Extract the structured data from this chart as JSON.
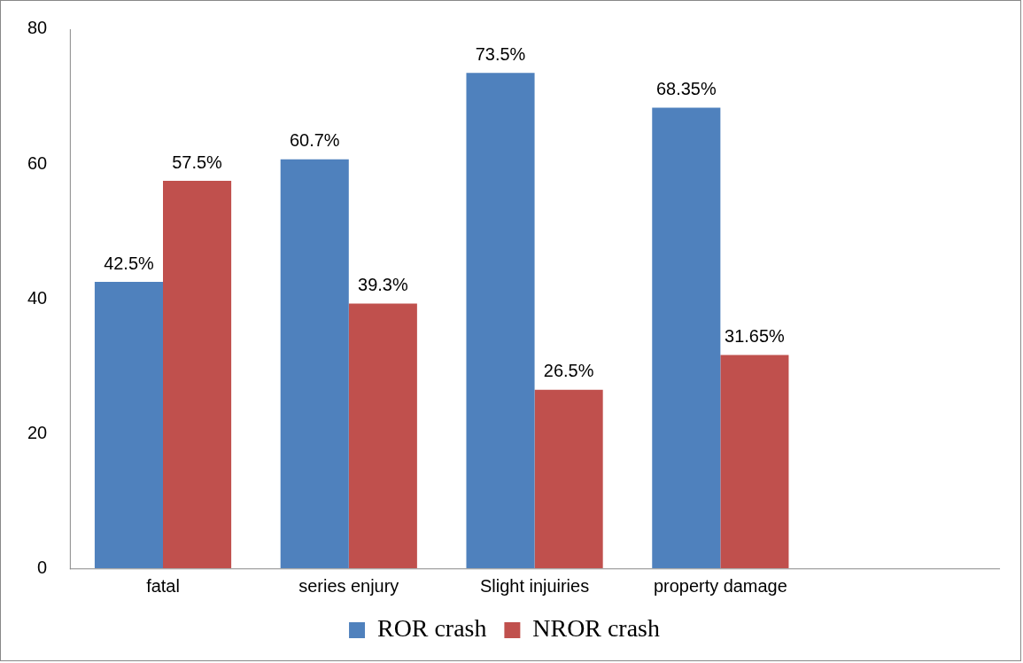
{
  "chart_data": {
    "type": "bar",
    "categories": [
      "fatal",
      "series enjury",
      "Slight injuiries",
      "property damage",
      null
    ],
    "series": [
      {
        "name": "ROR crash",
        "color": "#4f81bd",
        "values": [
          42.5,
          60.7,
          73.5,
          68.35,
          null
        ],
        "value_labels": [
          "42.5%",
          "60.7%",
          "73.5%",
          "68.35%",
          null
        ]
      },
      {
        "name": "NROR crash",
        "color": "#c0504d",
        "values": [
          57.5,
          39.3,
          26.5,
          31.65,
          null
        ],
        "value_labels": [
          "57.5%",
          "39.3%",
          "26.5%",
          "31.65%",
          null
        ]
      }
    ],
    "ylim": [
      0,
      80
    ],
    "yticks": [
      0,
      20,
      40,
      60,
      80
    ],
    "grid": false,
    "legend": "bottom"
  }
}
